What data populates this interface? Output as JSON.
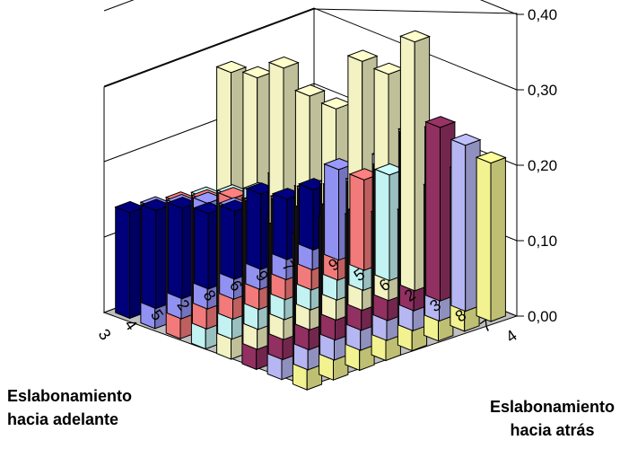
{
  "chart_data": {
    "type": "bar3d",
    "x_axis_label": "Eslabonamiento\nhacia adelante",
    "y_axis_label": "Eslabonamiento\nhacia atrás",
    "x_categories": [
      "3",
      "4",
      "5",
      "2",
      "8",
      "6",
      "9",
      "7"
    ],
    "y_categories": [
      "9",
      "5",
      "6",
      "2",
      "3",
      "8",
      "7",
      "4"
    ],
    "zlim": [
      0,
      0.4
    ],
    "z_ticks": [
      "0,00",
      "0,10",
      "0,20",
      "0,30",
      "0,40"
    ],
    "series": [
      {
        "name": "9",
        "color": "#000080",
        "values": [
          0.14,
          0.13,
          0.12,
          0.1,
          0.09,
          0.1,
          0.08,
          0.08
        ]
      },
      {
        "name": "5",
        "color": "#9999ff",
        "values": [
          0.16,
          0.15,
          0.14,
          0.12,
          0.11,
          0.1,
          0.1,
          0.12
        ]
      },
      {
        "name": "6",
        "color": "#ff8080",
        "values": [
          0.18,
          0.17,
          0.16,
          0.14,
          0.13,
          0.13,
          0.12,
          0.12
        ]
      },
      {
        "name": "2",
        "color": "#ccffff",
        "values": [
          0.2,
          0.19,
          0.18,
          0.12,
          0.13,
          0.12,
          0.1,
          0.14
        ]
      },
      {
        "name": "3",
        "color": "#ffffcc",
        "values": [
          0.38,
          0.36,
          0.36,
          0.31,
          0.28,
          0.33,
          0.3,
          0.33
        ]
      },
      {
        "name": "8",
        "color": "#993366",
        "values": [
          0.22,
          0.24,
          0.21,
          0.2,
          0.19,
          0.2,
          0.23,
          0.23
        ]
      },
      {
        "name": "7",
        "color": "#c0c0ff",
        "values": [
          0.21,
          0.22,
          0.23,
          0.22,
          0.24,
          0.26,
          0.25,
          0.22
        ]
      },
      {
        "name": "4",
        "color": "#ffff99",
        "values": [
          0.2,
          0.21,
          0.2,
          0.19,
          0.18,
          0.2,
          0.21,
          0.21
        ]
      }
    ],
    "grid": true
  }
}
